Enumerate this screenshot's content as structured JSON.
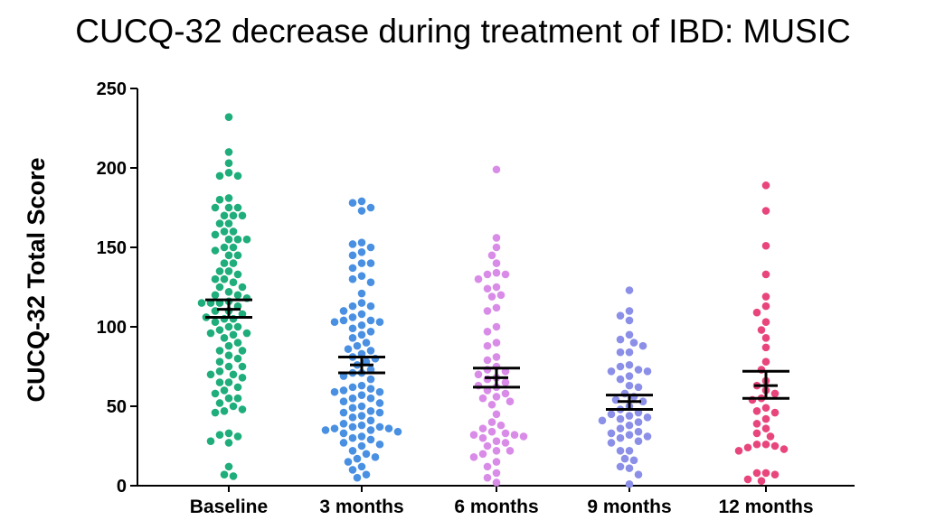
{
  "chart_data": {
    "type": "scatter",
    "title": "CUCQ-32 decrease during treatment of IBD: MUSIC",
    "xlabel": "",
    "ylabel": "CUCQ-32 Total Score",
    "ylim": [
      0,
      250
    ],
    "yticks": [
      "0",
      "50",
      "100",
      "150",
      "200",
      "250"
    ],
    "categories": [
      "Baseline",
      "3 months",
      "6 months",
      "9 months",
      "12 months"
    ],
    "colors": [
      "#1fae7b",
      "#4a90e2",
      "#d98be8",
      "#8b8fe8",
      "#e8457d"
    ],
    "mean_sem": [
      {
        "mean": 111,
        "upper": 117,
        "lower": 106
      },
      {
        "mean": 76,
        "upper": 81,
        "lower": 71
      },
      {
        "mean": 68,
        "upper": 74,
        "lower": 62
      },
      {
        "mean": 53,
        "upper": 57,
        "lower": 48
      },
      {
        "mean": 63,
        "upper": 72,
        "lower": 55
      }
    ],
    "series": [
      {
        "name": "Baseline",
        "values": [
          232,
          210,
          203,
          197,
          195,
          195,
          181,
          180,
          175,
          175,
          175,
          170,
          170,
          170,
          165,
          165,
          160,
          160,
          158,
          155,
          155,
          155,
          150,
          150,
          148,
          145,
          145,
          140,
          140,
          135,
          135,
          133,
          130,
          130,
          128,
          125,
          125,
          122,
          120,
          120,
          118,
          116,
          115,
          115,
          115,
          113,
          110,
          110,
          108,
          106,
          105,
          105,
          103,
          100,
          100,
          98,
          96,
          96,
          95,
          93,
          90,
          88,
          85,
          85,
          82,
          80,
          78,
          75,
          75,
          72,
          70,
          70,
          68,
          65,
          65,
          62,
          60,
          58,
          55,
          55,
          52,
          50,
          48,
          47,
          46,
          33,
          32,
          31,
          28,
          27,
          12,
          7,
          6
        ]
      },
      {
        "name": "3 months",
        "values": [
          179,
          178,
          175,
          173,
          153,
          152,
          150,
          147,
          145,
          140,
          140,
          137,
          132,
          130,
          128,
          121,
          115,
          113,
          113,
          110,
          108,
          106,
          104,
          104,
          103,
          103,
          101,
          99,
          97,
          95,
          93,
          90,
          88,
          86,
          85,
          83,
          81,
          80,
          78,
          76,
          73,
          71,
          71,
          69,
          67,
          63,
          62,
          61,
          60,
          59,
          59,
          57,
          55,
          55,
          53,
          52,
          50,
          49,
          47,
          46,
          46,
          44,
          43,
          41,
          39,
          38,
          37,
          37,
          36,
          36,
          35,
          35,
          34,
          33,
          31,
          30,
          29,
          27,
          26,
          25,
          22,
          20,
          18,
          17,
          15,
          12,
          10,
          7,
          5
        ]
      },
      {
        "name": "6 months",
        "values": [
          199,
          156,
          150,
          145,
          140,
          134,
          133,
          133,
          130,
          125,
          124,
          120,
          119,
          112,
          110,
          100,
          97,
          90,
          88,
          81,
          79,
          75,
          73,
          72,
          70,
          68,
          67,
          65,
          63,
          62,
          60,
          58,
          56,
          55,
          53,
          51,
          45,
          40,
          38,
          36,
          34,
          33,
          32,
          32,
          31,
          30,
          28,
          27,
          25,
          22,
          22,
          20,
          18,
          15,
          12,
          8,
          5,
          2
        ]
      },
      {
        "name": "9 months",
        "values": [
          123,
          110,
          107,
          104,
          95,
          92,
          90,
          88,
          84,
          84,
          76,
          75,
          73,
          72,
          72,
          69,
          67,
          63,
          62,
          58,
          56,
          54,
          53,
          50,
          48,
          46,
          45,
          44,
          43,
          42,
          41,
          40,
          38,
          36,
          34,
          33,
          32,
          31,
          30,
          28,
          27,
          22,
          22,
          17,
          16,
          12,
          11,
          7,
          1
        ]
      },
      {
        "name": "12 months",
        "values": [
          189,
          173,
          151,
          133,
          119,
          113,
          109,
          103,
          98,
          93,
          87,
          78,
          73,
          66,
          63,
          60,
          58,
          55,
          54,
          49,
          47,
          46,
          42,
          39,
          36,
          33,
          31,
          26,
          26,
          25,
          24,
          23,
          22,
          8,
          8,
          7,
          4,
          3
        ]
      }
    ]
  }
}
